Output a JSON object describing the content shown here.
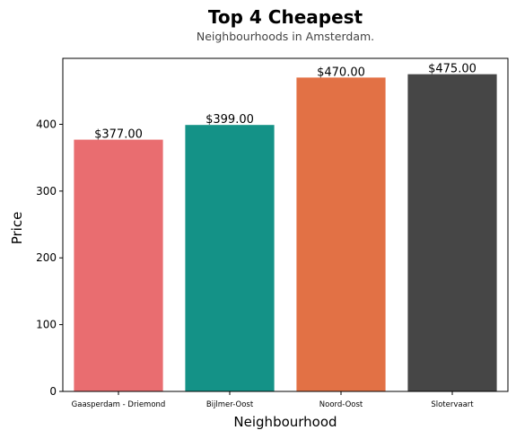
{
  "chart_data": {
    "type": "bar",
    "title": "Top 4 Cheapest",
    "subtitle": "Neighbourhoods in Amsterdam.",
    "xlabel": "Neighbourhood",
    "ylabel": "Price",
    "categories": [
      "Gaasperdam - Driemond",
      "Bijlmer-Oost",
      "Noord-Oost",
      "Slotervaart"
    ],
    "values": [
      377,
      399,
      470,
      475
    ],
    "value_labels": [
      "$377.00",
      "$399.00",
      "$470.00",
      "$475.00"
    ],
    "colors": [
      "#e96d70",
      "#149287",
      "#e27145",
      "#464646"
    ],
    "ylim": [
      0,
      498.75
    ],
    "yticks": [
      0,
      100,
      200,
      300,
      400
    ],
    "grid": false,
    "legend": "none"
  }
}
